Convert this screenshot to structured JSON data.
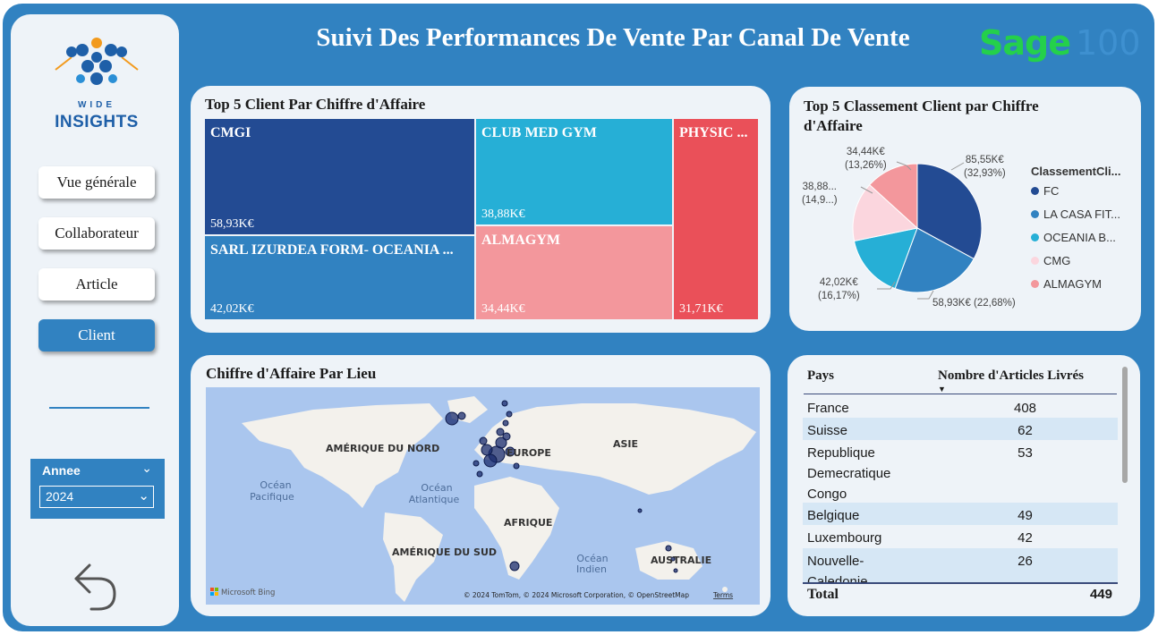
{
  "header": {
    "title": "Suivi Des Performances De Vente Par Canal De Vente",
    "partner_logo": {
      "word": "Sage",
      "number": "100",
      "color": "#24d04b"
    }
  },
  "sidebar": {
    "logo": {
      "line1": "WIDE",
      "line2": "INSIGHTS"
    },
    "nav": [
      {
        "label": "Vue générale",
        "active": false
      },
      {
        "label": "Collaborateur",
        "active": false
      },
      {
        "label": "Article",
        "active": false
      },
      {
        "label": "Client",
        "active": true
      }
    ],
    "year_filter": {
      "label": "Annee",
      "value": "2024"
    }
  },
  "treemap": {
    "title": "Top 5 Client Par Chiffre d'Affaire",
    "tiles": [
      {
        "name": "CMGI",
        "value_label": "58,93K€",
        "color": "#234b93"
      },
      {
        "name": "SARL IZURDEA FORM- OCEANIA ...",
        "value_label": "42,02K€",
        "color": "#3182c1"
      },
      {
        "name": "CLUB MED GYM",
        "value_label": "38,88K€",
        "color": "#26afd6"
      },
      {
        "name": "ALMAGYM",
        "value_label": "34,44K€",
        "color": "#f3979c"
      },
      {
        "name": "PHYSIC ...",
        "value_label": "31,71K€",
        "color": "#ea5059"
      }
    ]
  },
  "pie": {
    "title": "Top 5 Classement Client par Chiffre d'Affaire",
    "legend_title": "ClassementCli...",
    "slices": [
      {
        "legend": "FC",
        "label_value": "85,55K€",
        "label_pct": "(32,93%)",
        "value": 85.55,
        "color": "#234b93"
      },
      {
        "legend": "LA CASA FIT...",
        "label_value": "58,93K€ (22,68%)",
        "label_pct": "",
        "value": 58.93,
        "color": "#3182c1"
      },
      {
        "legend": "OCEANIA B...",
        "label_value": "42,02K€",
        "label_pct": "(16,17%)",
        "value": 42.02,
        "color": "#26afd6"
      },
      {
        "legend": "CMG",
        "label_value": "38,88...",
        "label_pct": "(14,9...)",
        "value": 38.88,
        "color": "#fbd6de"
      },
      {
        "legend": "ALMAGYM",
        "label_value": "34,44K€",
        "label_pct": "(13,26%)",
        "value": 34.44,
        "color": "#f3979c"
      }
    ]
  },
  "map": {
    "title": "Chiffre d'Affaire Par Lieu",
    "labels": {
      "north_america": "AMÉRIQUE DU NORD",
      "europe": "EUROPE",
      "asia": "ASIE",
      "africa": "AFRIQUE",
      "south_america": "AMÉRIQUE DU SUD",
      "australia": "AUSTRALIE",
      "pacific_1": "Océan",
      "pacific_2": "Pacifique",
      "atlantic_1": "Océan",
      "atlantic_2": "Atlantique",
      "indian_1": "Océan",
      "indian_2": "Indien"
    },
    "provider": "Microsoft Bing",
    "copyright": "© 2024 TomTom, © 2024 Microsoft Corporation, © OpenStreetMap",
    "terms": "Terms"
  },
  "table": {
    "columns": [
      "Pays",
      "Nombre d'Articles Livrés"
    ],
    "rows": [
      {
        "pays": "France",
        "count": "408"
      },
      {
        "pays": "Suisse",
        "count": "62"
      },
      {
        "pays": "Republique Demecratique Congo",
        "count": "53"
      },
      {
        "pays": "Belgique",
        "count": "49"
      },
      {
        "pays": "Luxembourg",
        "count": "42"
      },
      {
        "pays": "Nouvelle-Caledonie",
        "count": "26"
      }
    ],
    "total_label": "Total",
    "total_value": "449"
  },
  "icons": {
    "back": "back-arrow-icon",
    "sort": "sort-desc-icon",
    "dropdown": "chevron-down-icon"
  }
}
